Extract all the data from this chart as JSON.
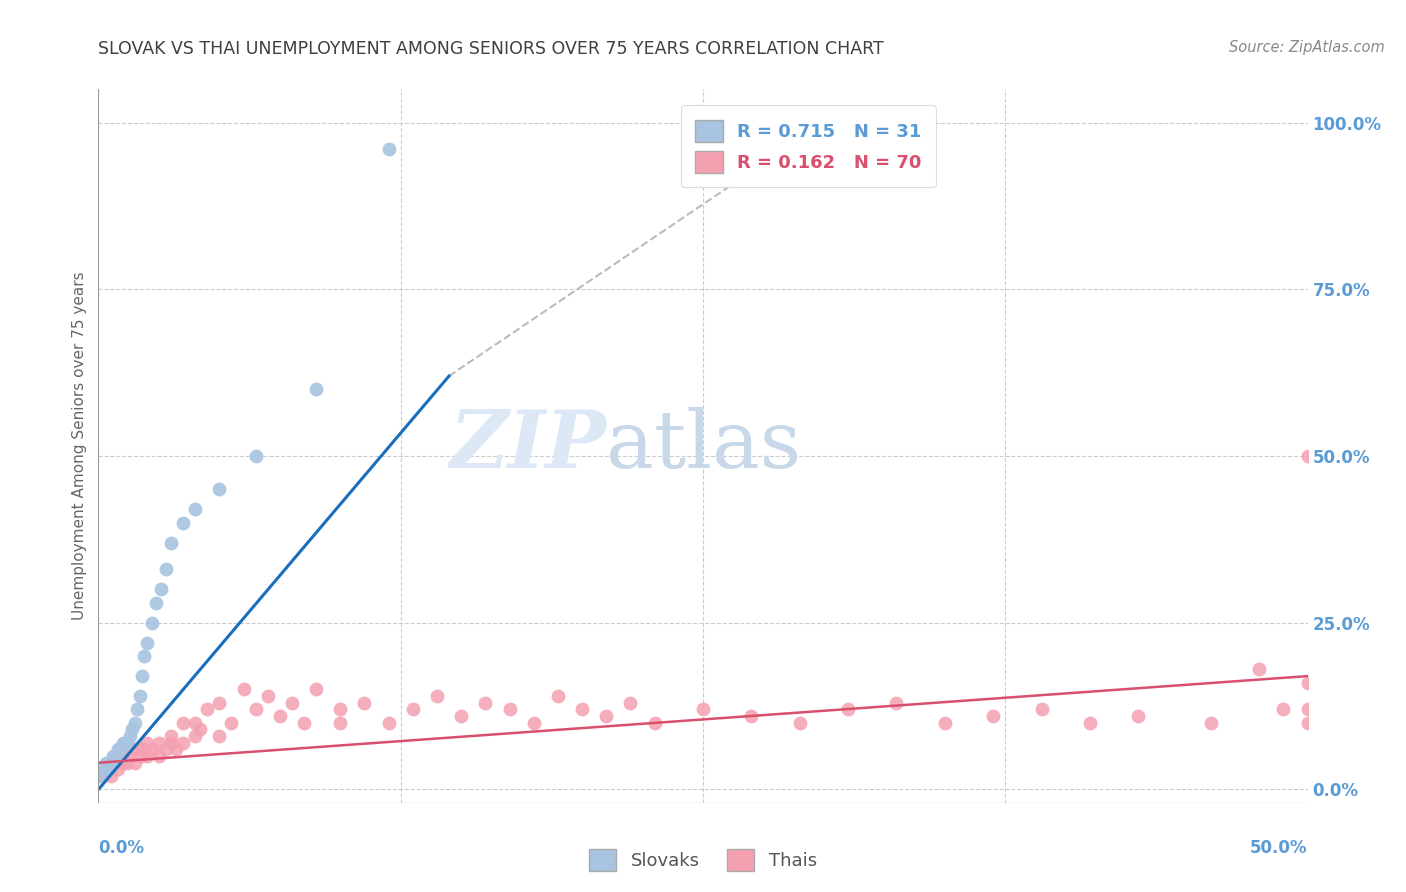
{
  "title": "SLOVAK VS THAI UNEMPLOYMENT AMONG SENIORS OVER 75 YEARS CORRELATION CHART",
  "source": "Source: ZipAtlas.com",
  "ylabel": "Unemployment Among Seniors over 75 years",
  "right_yticks": [
    0.0,
    0.25,
    0.5,
    0.75,
    1.0
  ],
  "right_yticklabels": [
    "0.0%",
    "25.0%",
    "50.0%",
    "75.0%",
    "100.0%"
  ],
  "xlim": [
    0.0,
    0.5
  ],
  "ylim": [
    -0.02,
    1.05
  ],
  "slovak_color": "#a8c4e0",
  "thai_color": "#f4a0b0",
  "slovak_line_color": "#1a6fbd",
  "thai_line_color": "#d94f6e",
  "legend_slovak_R": "0.715",
  "legend_slovak_N": "31",
  "legend_thai_R": "0.162",
  "legend_thai_N": "70",
  "watermark_zip": "ZIP",
  "watermark_atlas": "atlas",
  "watermark_color": "#dce8f5",
  "background_color": "#ffffff",
  "grid_color": "#cccccc",
  "axis_label_color": "#5b9bd5",
  "title_color": "#404040",
  "slovak_points_x": [
    0.0,
    0.002,
    0.003,
    0.004,
    0.005,
    0.006,
    0.007,
    0.008,
    0.009,
    0.01,
    0.011,
    0.012,
    0.013,
    0.014,
    0.015,
    0.016,
    0.017,
    0.018,
    0.019,
    0.02,
    0.022,
    0.024,
    0.026,
    0.028,
    0.03,
    0.035,
    0.04,
    0.05,
    0.065,
    0.09,
    0.12
  ],
  "slovak_points_y": [
    0.02,
    0.03,
    0.04,
    0.03,
    0.04,
    0.05,
    0.05,
    0.06,
    0.06,
    0.07,
    0.07,
    0.07,
    0.08,
    0.09,
    0.1,
    0.12,
    0.14,
    0.17,
    0.2,
    0.22,
    0.25,
    0.28,
    0.3,
    0.33,
    0.37,
    0.4,
    0.42,
    0.45,
    0.5,
    0.6,
    0.96
  ],
  "thai_points_x": [
    0.0,
    0.003,
    0.005,
    0.007,
    0.008,
    0.01,
    0.01,
    0.012,
    0.013,
    0.015,
    0.015,
    0.018,
    0.018,
    0.02,
    0.02,
    0.022,
    0.025,
    0.025,
    0.028,
    0.03,
    0.03,
    0.032,
    0.035,
    0.035,
    0.04,
    0.04,
    0.042,
    0.045,
    0.05,
    0.05,
    0.055,
    0.06,
    0.065,
    0.07,
    0.075,
    0.08,
    0.085,
    0.09,
    0.1,
    0.1,
    0.11,
    0.12,
    0.13,
    0.14,
    0.15,
    0.16,
    0.17,
    0.18,
    0.19,
    0.2,
    0.21,
    0.22,
    0.23,
    0.25,
    0.27,
    0.29,
    0.31,
    0.33,
    0.35,
    0.37,
    0.39,
    0.41,
    0.43,
    0.46,
    0.48,
    0.49,
    0.5,
    0.5,
    0.5,
    0.5
  ],
  "thai_points_y": [
    0.02,
    0.03,
    0.02,
    0.04,
    0.03,
    0.05,
    0.04,
    0.04,
    0.05,
    0.04,
    0.06,
    0.05,
    0.06,
    0.05,
    0.07,
    0.06,
    0.05,
    0.07,
    0.06,
    0.07,
    0.08,
    0.06,
    0.07,
    0.1,
    0.08,
    0.1,
    0.09,
    0.12,
    0.08,
    0.13,
    0.1,
    0.15,
    0.12,
    0.14,
    0.11,
    0.13,
    0.1,
    0.15,
    0.1,
    0.12,
    0.13,
    0.1,
    0.12,
    0.14,
    0.11,
    0.13,
    0.12,
    0.1,
    0.14,
    0.12,
    0.11,
    0.13,
    0.1,
    0.12,
    0.11,
    0.1,
    0.12,
    0.13,
    0.1,
    0.11,
    0.12,
    0.1,
    0.11,
    0.1,
    0.18,
    0.12,
    0.5,
    0.1,
    0.12,
    0.16
  ],
  "slovak_line_x": [
    0.0,
    0.145
  ],
  "slovak_line_y": [
    0.0,
    0.62
  ],
  "thai_line_x": [
    0.0,
    0.5
  ],
  "thai_line_y": [
    0.04,
    0.17
  ],
  "dashed_line_x": [
    0.145,
    0.3
  ],
  "dashed_line_y": [
    0.62,
    1.0
  ]
}
